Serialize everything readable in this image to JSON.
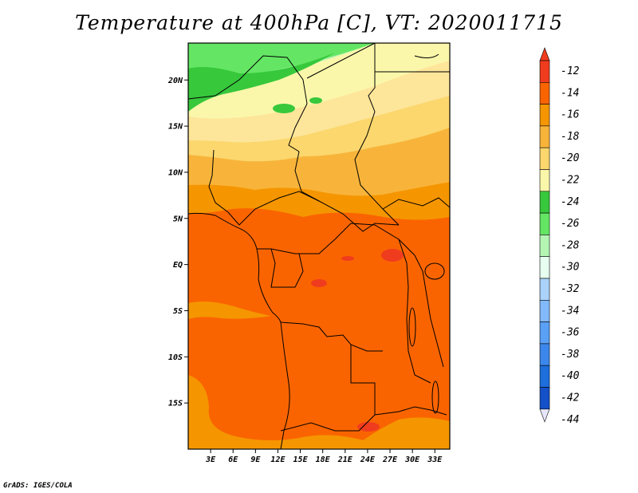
{
  "title": "Temperature at 400hPa [C], VT: 2020011715",
  "credit": "GrADS: IGES/COLA",
  "map": {
    "lon_range": [
      0,
      35
    ],
    "lat_range": [
      -20,
      24
    ],
    "x_ticks": [
      "3E",
      "6E",
      "9E",
      "12E",
      "15E",
      "18E",
      "21E",
      "24E",
      "27E",
      "30E",
      "33E"
    ],
    "x_tick_values": [
      3,
      6,
      9,
      12,
      15,
      18,
      21,
      24,
      27,
      30,
      33
    ],
    "y_ticks": [
      "20N",
      "15N",
      "10N",
      "5N",
      "EQ",
      "5S",
      "10S",
      "15S"
    ],
    "y_tick_values": [
      20,
      15,
      10,
      5,
      0,
      -5,
      -10,
      -15
    ]
  },
  "colorbar": {
    "levels": [
      "-12",
      "-14",
      "-16",
      "-18",
      "-20",
      "-22",
      "-24",
      "-26",
      "-28",
      "-30",
      "-32",
      "-34",
      "-36",
      "-38",
      "-40",
      "-42",
      "-44"
    ],
    "colors": [
      "#f03c1e",
      "#fa6400",
      "#f59600",
      "#f8b43a",
      "#fbd76d",
      "#fbf7aa",
      "#37c83c",
      "#64e664",
      "#b4f5b4",
      "#e6fff0",
      "#aad2fa",
      "#82b9fa",
      "#5aa0f5",
      "#3c87eb",
      "#1e6edc",
      "#1450c8",
      "#0a1e78"
    ],
    "top_arrow_color": "#f03c1e",
    "bottom_arrow_color": "#e6e6fa"
  },
  "field_colors": {
    "c_22": "#fbf7aa",
    "c_20": "#fde59a",
    "c_18": "#fbd76d",
    "c_16": "#f8b43a",
    "c_14": "#f59600",
    "c_12": "#fa6400",
    "c_warm": "#f03c1e",
    "g_24": "#37c83c",
    "g_26": "#64e664",
    "g_28": "#b4f5b4"
  }
}
